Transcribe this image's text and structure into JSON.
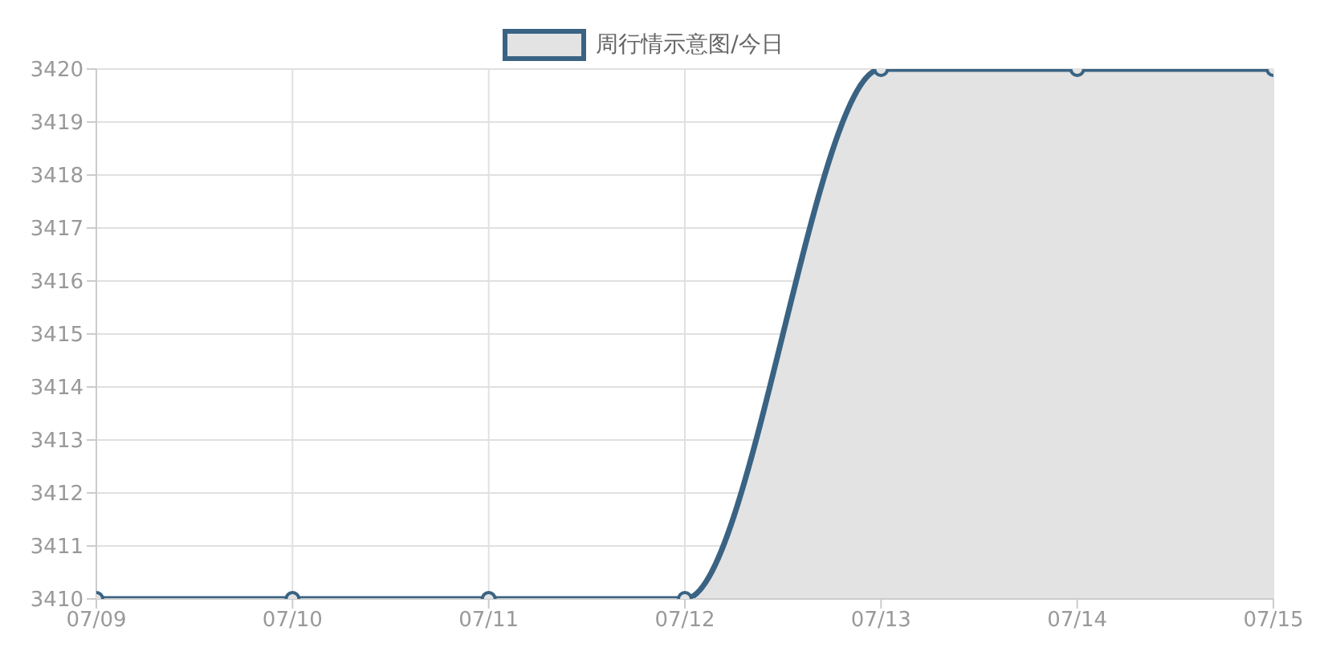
{
  "chart_data": {
    "type": "area",
    "categories": [
      "07/09",
      "07/10",
      "07/11",
      "07/12",
      "07/13",
      "07/14",
      "07/15"
    ],
    "series": [
      {
        "name": "周行情示意图/今日",
        "color": "#3a6383",
        "values": [
          3410,
          3410,
          3410,
          3410,
          3420,
          3420,
          3420
        ]
      }
    ],
    "ylim": [
      3410,
      3420
    ],
    "yticks": [
      3410,
      3411,
      3412,
      3413,
      3414,
      3415,
      3416,
      3417,
      3418,
      3419,
      3420
    ],
    "grid": true,
    "legend": "top",
    "marker": "circle",
    "line_style": "solid"
  }
}
